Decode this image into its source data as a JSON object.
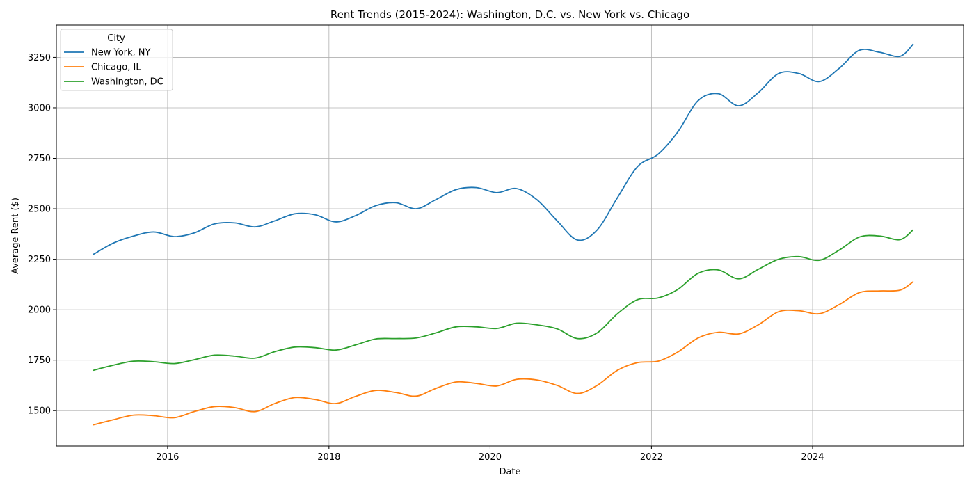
{
  "chart_data": {
    "type": "line",
    "title": "Rent Trends (2015-2024): Washington, D.C. vs. New York vs. Chicago",
    "xlabel": "Date",
    "ylabel": "Average Rent ($)",
    "xlim": [
      "2014-08-15",
      "2025-11-15"
    ],
    "ylim": [
      1325,
      3410
    ],
    "x_ticks": [
      "2016",
      "2018",
      "2020",
      "2022",
      "2024"
    ],
    "y_ticks": [
      1500,
      1750,
      2000,
      2250,
      2500,
      2750,
      3000,
      3250
    ],
    "grid": true,
    "legend": {
      "title": "City",
      "placement": "top-left"
    },
    "series": [
      {
        "name": "New York, NY",
        "color": "#1f77b4",
        "points": [
          [
            "2015-01-31",
            2275
          ],
          [
            "2015-04-30",
            2330
          ],
          [
            "2015-07-31",
            2365
          ],
          [
            "2015-10-31",
            2385
          ],
          [
            "2016-01-31",
            2362
          ],
          [
            "2016-04-30",
            2380
          ],
          [
            "2016-07-31",
            2425
          ],
          [
            "2016-10-31",
            2430
          ],
          [
            "2017-01-31",
            2410
          ],
          [
            "2017-04-30",
            2440
          ],
          [
            "2017-07-31",
            2475
          ],
          [
            "2017-10-31",
            2470
          ],
          [
            "2018-01-31",
            2435
          ],
          [
            "2018-04-30",
            2465
          ],
          [
            "2018-07-31",
            2515
          ],
          [
            "2018-10-31",
            2530
          ],
          [
            "2019-01-31",
            2500
          ],
          [
            "2019-04-30",
            2545
          ],
          [
            "2019-07-31",
            2595
          ],
          [
            "2019-10-31",
            2605
          ],
          [
            "2020-01-31",
            2580
          ],
          [
            "2020-04-30",
            2600
          ],
          [
            "2020-07-31",
            2545
          ],
          [
            "2020-10-31",
            2440
          ],
          [
            "2021-01-31",
            2345
          ],
          [
            "2021-04-30",
            2395
          ],
          [
            "2021-07-31",
            2555
          ],
          [
            "2021-10-31",
            2710
          ],
          [
            "2022-01-31",
            2770
          ],
          [
            "2022-04-30",
            2880
          ],
          [
            "2022-07-31",
            3035
          ],
          [
            "2022-10-31",
            3070
          ],
          [
            "2023-01-31",
            3010
          ],
          [
            "2023-04-30",
            3075
          ],
          [
            "2023-07-31",
            3170
          ],
          [
            "2023-10-31",
            3170
          ],
          [
            "2024-01-31",
            3130
          ],
          [
            "2024-04-30",
            3195
          ],
          [
            "2024-07-31",
            3285
          ],
          [
            "2024-10-31",
            3275
          ],
          [
            "2025-01-31",
            3255
          ],
          [
            "2025-03-31",
            3315
          ]
        ]
      },
      {
        "name": "Chicago, IL",
        "color": "#ff7f0e",
        "points": [
          [
            "2015-01-31",
            1430
          ],
          [
            "2015-04-30",
            1455
          ],
          [
            "2015-07-31",
            1478
          ],
          [
            "2015-10-31",
            1475
          ],
          [
            "2016-01-31",
            1465
          ],
          [
            "2016-04-30",
            1495
          ],
          [
            "2016-07-31",
            1520
          ],
          [
            "2016-10-31",
            1515
          ],
          [
            "2017-01-31",
            1495
          ],
          [
            "2017-04-30",
            1535
          ],
          [
            "2017-07-31",
            1565
          ],
          [
            "2017-10-31",
            1555
          ],
          [
            "2018-01-31",
            1535
          ],
          [
            "2018-04-30",
            1570
          ],
          [
            "2018-07-31",
            1600
          ],
          [
            "2018-10-31",
            1590
          ],
          [
            "2019-01-31",
            1572
          ],
          [
            "2019-04-30",
            1610
          ],
          [
            "2019-07-31",
            1642
          ],
          [
            "2019-10-31",
            1635
          ],
          [
            "2020-01-31",
            1622
          ],
          [
            "2020-04-30",
            1655
          ],
          [
            "2020-07-31",
            1652
          ],
          [
            "2020-10-31",
            1625
          ],
          [
            "2021-01-31",
            1585
          ],
          [
            "2021-04-30",
            1625
          ],
          [
            "2021-07-31",
            1700
          ],
          [
            "2021-10-31",
            1738
          ],
          [
            "2022-01-31",
            1745
          ],
          [
            "2022-04-30",
            1790
          ],
          [
            "2022-07-31",
            1860
          ],
          [
            "2022-10-31",
            1888
          ],
          [
            "2023-01-31",
            1880
          ],
          [
            "2023-04-30",
            1925
          ],
          [
            "2023-07-31",
            1990
          ],
          [
            "2023-10-31",
            1995
          ],
          [
            "2024-01-31",
            1980
          ],
          [
            "2024-04-30",
            2025
          ],
          [
            "2024-07-31",
            2085
          ],
          [
            "2024-10-31",
            2093
          ],
          [
            "2025-01-31",
            2097
          ],
          [
            "2025-03-31",
            2138
          ]
        ]
      },
      {
        "name": "Washington, DC",
        "color": "#2ca02c",
        "points": [
          [
            "2015-01-31",
            1700
          ],
          [
            "2015-04-30",
            1725
          ],
          [
            "2015-07-31",
            1745
          ],
          [
            "2015-10-31",
            1742
          ],
          [
            "2016-01-31",
            1733
          ],
          [
            "2016-04-30",
            1752
          ],
          [
            "2016-07-31",
            1775
          ],
          [
            "2016-10-31",
            1770
          ],
          [
            "2017-01-31",
            1760
          ],
          [
            "2017-04-30",
            1792
          ],
          [
            "2017-07-31",
            1815
          ],
          [
            "2017-10-31",
            1812
          ],
          [
            "2018-01-31",
            1800
          ],
          [
            "2018-04-30",
            1825
          ],
          [
            "2018-07-31",
            1855
          ],
          [
            "2018-10-31",
            1857
          ],
          [
            "2019-01-31",
            1860
          ],
          [
            "2019-04-30",
            1885
          ],
          [
            "2019-07-31",
            1915
          ],
          [
            "2019-10-31",
            1915
          ],
          [
            "2020-01-31",
            1907
          ],
          [
            "2020-04-30",
            1933
          ],
          [
            "2020-07-31",
            1925
          ],
          [
            "2020-10-31",
            1905
          ],
          [
            "2021-01-31",
            1857
          ],
          [
            "2021-04-30",
            1885
          ],
          [
            "2021-07-31",
            1980
          ],
          [
            "2021-10-31",
            2050
          ],
          [
            "2022-01-31",
            2058
          ],
          [
            "2022-04-30",
            2100
          ],
          [
            "2022-07-31",
            2180
          ],
          [
            "2022-10-31",
            2197
          ],
          [
            "2023-01-31",
            2153
          ],
          [
            "2023-04-30",
            2200
          ],
          [
            "2023-07-31",
            2250
          ],
          [
            "2023-10-31",
            2263
          ],
          [
            "2024-01-31",
            2245
          ],
          [
            "2024-04-30",
            2295
          ],
          [
            "2024-07-31",
            2360
          ],
          [
            "2024-10-31",
            2365
          ],
          [
            "2025-01-31",
            2347
          ],
          [
            "2025-03-31",
            2395
          ]
        ]
      }
    ]
  }
}
